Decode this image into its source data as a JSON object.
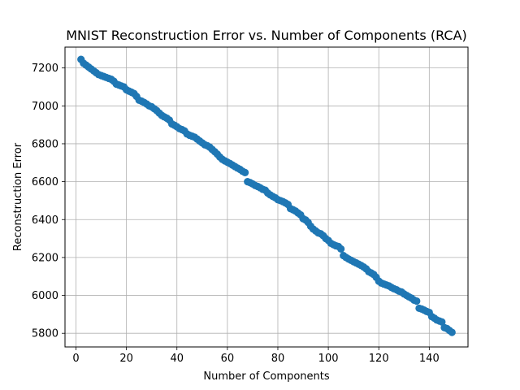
{
  "chart_data": {
    "type": "scatter",
    "title": "MNIST Reconstruction Error vs. Number of Components (RCA)",
    "xlabel": "Number of Components",
    "ylabel": "Reconstruction Error",
    "xlim": [
      -4.35,
      155.35
    ],
    "ylim": [
      5728,
      7310
    ],
    "xticks": [
      0,
      20,
      40,
      60,
      80,
      100,
      120,
      140
    ],
    "yticks": [
      5800,
      6000,
      6200,
      6400,
      6600,
      6800,
      7000,
      7200
    ],
    "grid": true,
    "marker_color": "#1f77b4",
    "x": [
      2,
      3,
      4,
      5,
      6,
      7,
      8,
      9,
      10,
      11,
      12,
      13,
      14,
      15,
      16,
      17,
      18,
      19,
      20,
      21,
      22,
      23,
      24,
      25,
      26,
      27,
      28,
      29,
      30,
      31,
      32,
      33,
      34,
      35,
      36,
      37,
      38,
      39,
      40,
      41,
      42,
      43,
      44,
      45,
      46,
      47,
      48,
      49,
      50,
      51,
      52,
      53,
      54,
      55,
      56,
      57,
      58,
      59,
      60,
      61,
      62,
      63,
      64,
      65,
      66,
      67,
      68,
      69,
      70,
      71,
      72,
      73,
      74,
      75,
      76,
      77,
      78,
      79,
      80,
      81,
      82,
      83,
      84,
      85,
      86,
      87,
      88,
      89,
      90,
      91,
      92,
      93,
      94,
      95,
      96,
      97,
      98,
      99,
      100,
      101,
      102,
      103,
      104,
      105,
      106,
      107,
      108,
      109,
      110,
      111,
      112,
      113,
      114,
      115,
      116,
      117,
      118,
      119,
      120,
      121,
      122,
      123,
      124,
      125,
      126,
      127,
      128,
      129,
      130,
      131,
      132,
      133,
      134,
      135,
      136,
      137,
      138,
      139,
      140,
      141,
      142,
      143,
      144,
      145,
      146,
      147,
      148,
      149
    ],
    "y": [
      7245,
      7225,
      7215,
      7205,
      7195,
      7185,
      7175,
      7165,
      7160,
      7155,
      7150,
      7145,
      7140,
      7130,
      7115,
      7110,
      7105,
      7100,
      7085,
      7078,
      7072,
      7065,
      7050,
      7030,
      7025,
      7018,
      7010,
      7000,
      6995,
      6985,
      6975,
      6962,
      6950,
      6942,
      6935,
      6925,
      6905,
      6898,
      6890,
      6880,
      6875,
      6868,
      6852,
      6845,
      6840,
      6835,
      6825,
      6815,
      6805,
      6795,
      6790,
      6782,
      6770,
      6758,
      6745,
      6730,
      6718,
      6710,
      6703,
      6696,
      6688,
      6680,
      6672,
      6665,
      6655,
      6648,
      6600,
      6595,
      6588,
      6580,
      6575,
      6568,
      6560,
      6555,
      6540,
      6530,
      6522,
      6515,
      6505,
      6500,
      6495,
      6488,
      6480,
      6458,
      6452,
      6445,
      6435,
      6425,
      6405,
      6398,
      6385,
      6365,
      6350,
      6340,
      6330,
      6325,
      6315,
      6300,
      6290,
      6275,
      6268,
      6262,
      6258,
      6245,
      6210,
      6200,
      6192,
      6185,
      6178,
      6172,
      6165,
      6158,
      6150,
      6140,
      6125,
      6118,
      6110,
      6095,
      6075,
      6065,
      6060,
      6055,
      6050,
      6042,
      6035,
      6030,
      6022,
      6018,
      6008,
      6000,
      5992,
      5985,
      5975,
      5970,
      5932,
      5928,
      5922,
      5915,
      5910,
      5888,
      5880,
      5870,
      5865,
      5860,
      5830,
      5825,
      5815,
      5805
    ]
  }
}
